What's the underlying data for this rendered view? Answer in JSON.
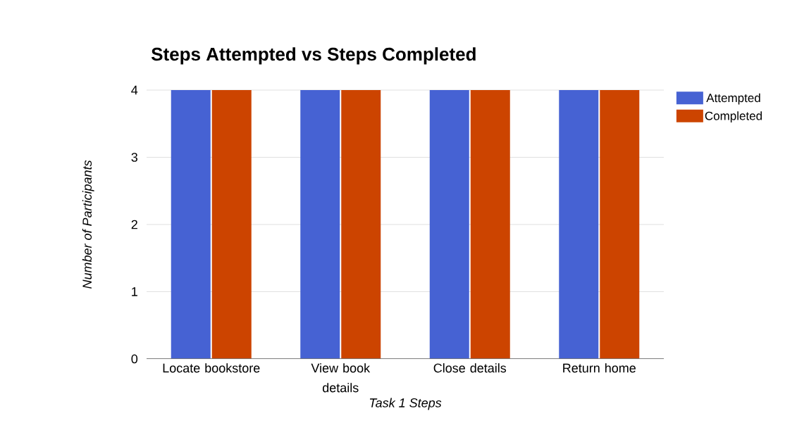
{
  "chart_data": {
    "type": "bar",
    "title": "Steps Attempted vs Steps Completed",
    "xlabel": "Task 1 Steps",
    "ylabel": "Number of Participants",
    "categories": [
      "Locate bookstore",
      "View book details",
      "Close details",
      "Return home"
    ],
    "series": [
      {
        "name": "Attempted",
        "color": "#4662d3",
        "values": [
          4,
          4,
          4,
          4
        ]
      },
      {
        "name": "Completed",
        "color": "#cc4400",
        "values": [
          4,
          4,
          4,
          4
        ]
      }
    ],
    "ylim": [
      0,
      4
    ],
    "yticks": [
      0,
      1,
      2,
      3,
      4
    ],
    "grid": "y",
    "legend": "top right"
  }
}
